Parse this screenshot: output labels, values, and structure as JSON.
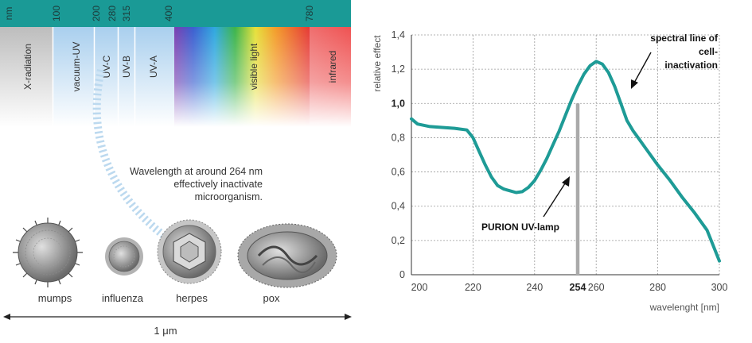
{
  "spectrum": {
    "scale_ticks": [
      {
        "label": "nm"
      },
      {
        "label": "100"
      },
      {
        "label": "200"
      },
      {
        "label": "280"
      },
      {
        "label": "315"
      },
      {
        "label": "400"
      },
      {
        "label": "780"
      }
    ],
    "bands": [
      {
        "label": "X-radiation"
      },
      {
        "label": "vacuum-UV"
      },
      {
        "label": "UV-C"
      },
      {
        "label": "UV-B"
      },
      {
        "label": "UV-A"
      },
      {
        "label": "visible light"
      },
      {
        "label": "infrared"
      }
    ],
    "header_color": "#1a9a96"
  },
  "note": {
    "lines": [
      "Wavelength at around 264 nm",
      "effectively inactivate",
      "microorganism."
    ]
  },
  "viruses": [
    {
      "label": "mumps"
    },
    {
      "label": "influenza"
    },
    {
      "label": "herpes"
    },
    {
      "label": "pox"
    }
  ],
  "scale_bar": {
    "label": "1 μm"
  },
  "chart_data": {
    "type": "line",
    "xlabel": "wavelenght [nm]",
    "ylabel": "relative effect",
    "xlim": [
      200,
      300
    ],
    "ylim": [
      0,
      1.4
    ],
    "x_ticks": [
      {
        "value": 200,
        "label": "200"
      },
      {
        "value": 220,
        "label": "220"
      },
      {
        "value": 240,
        "label": "240"
      },
      {
        "value": 254,
        "label": "254"
      },
      {
        "value": 260,
        "label": "260"
      },
      {
        "value": 280,
        "label": "280"
      },
      {
        "value": 300,
        "label": "300"
      }
    ],
    "y_ticks": [
      {
        "value": 0,
        "label": "0"
      },
      {
        "value": 0.2,
        "label": "0,2"
      },
      {
        "value": 0.4,
        "label": "0,4"
      },
      {
        "value": 0.6,
        "label": "0,6"
      },
      {
        "value": 0.8,
        "label": "0,8"
      },
      {
        "value": 1.0,
        "label": "1,0"
      },
      {
        "value": 1.2,
        "label": "1,2"
      },
      {
        "value": 1.4,
        "label": "1,4"
      }
    ],
    "grid": true,
    "line_color": "#1e9b96",
    "series": [
      {
        "x": [
          200,
          202,
          206,
          210,
          214,
          218,
          220,
          222,
          224,
          226,
          228,
          230,
          232,
          234,
          236,
          238,
          240,
          242,
          244,
          246,
          248,
          250,
          252,
          254,
          256,
          258,
          260,
          262,
          264,
          266,
          268,
          270,
          272,
          274,
          276,
          280,
          284,
          288,
          292,
          296,
          300
        ],
        "y": [
          0.91,
          0.88,
          0.865,
          0.86,
          0.855,
          0.845,
          0.8,
          0.72,
          0.64,
          0.57,
          0.52,
          0.5,
          0.49,
          0.48,
          0.485,
          0.51,
          0.55,
          0.61,
          0.68,
          0.76,
          0.84,
          0.93,
          1.02,
          1.1,
          1.17,
          1.22,
          1.245,
          1.23,
          1.18,
          1.1,
          1.0,
          0.9,
          0.84,
          0.79,
          0.74,
          0.64,
          0.55,
          0.45,
          0.36,
          0.26,
          0.08
        ]
      }
    ],
    "lamp_line": {
      "x": 254,
      "color": "#aaaaaa"
    },
    "annotations": [
      {
        "label": "spectral line of",
        "x": 273,
        "y": 1.33
      },
      {
        "label": "cell-",
        "x": 273,
        "y": 1.25
      },
      {
        "label": "inactivation",
        "x": 273,
        "y": 1.17
      },
      {
        "label": "PURION UV-lamp",
        "x": 235,
        "y": 0.27
      }
    ]
  }
}
